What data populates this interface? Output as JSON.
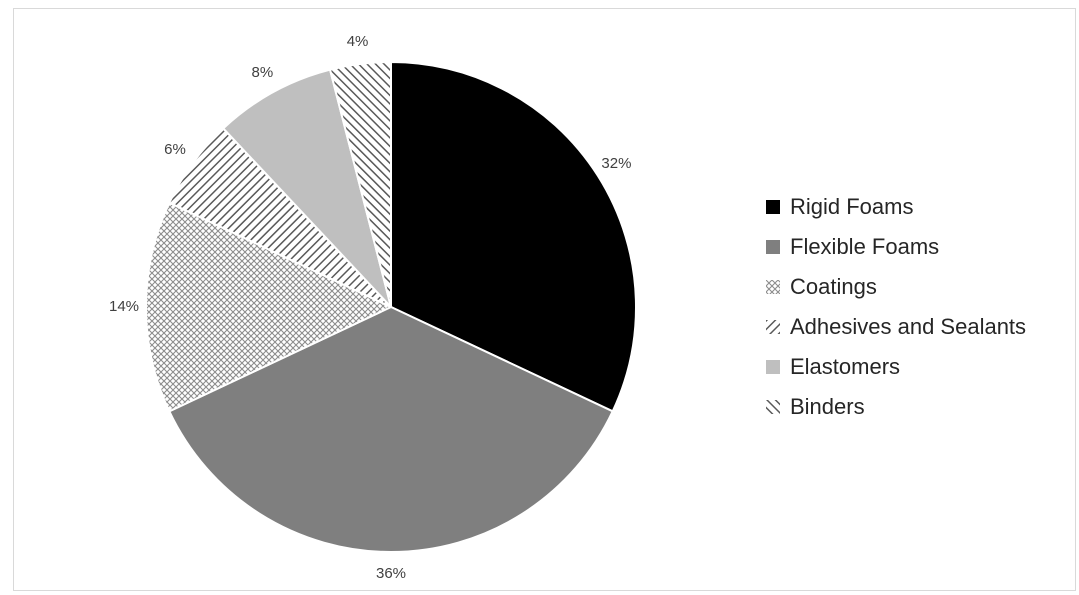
{
  "chart_data": {
    "type": "pie",
    "title": "",
    "legend_position": "right",
    "slices": [
      {
        "label": "Rigid Foams",
        "value": 32,
        "data_label": "32%",
        "fill": "solid",
        "color": "#000000"
      },
      {
        "label": "Flexible Foams",
        "value": 36,
        "data_label": "36%",
        "fill": "solid",
        "color": "#7f7f7f"
      },
      {
        "label": "Coatings",
        "value": 14,
        "data_label": "14%",
        "fill": "crosshatch",
        "color": "#8c8c8c"
      },
      {
        "label": "Adhesives and Sealants",
        "value": 6,
        "data_label": "6%",
        "fill": "diagonal-stripes",
        "color": "#595959"
      },
      {
        "label": "Elastomers",
        "value": 8,
        "data_label": "8%",
        "fill": "solid",
        "color": "#bfbfbf"
      },
      {
        "label": "Binders",
        "value": 4,
        "data_label": "4%",
        "fill": "diagonal-stripes-reverse",
        "color": "#595959"
      }
    ]
  },
  "legend": {
    "items": [
      "Rigid Foams",
      "Flexible Foams",
      "Coatings",
      "Adhesives and Sealants",
      "Elastomers",
      "Binders"
    ]
  }
}
